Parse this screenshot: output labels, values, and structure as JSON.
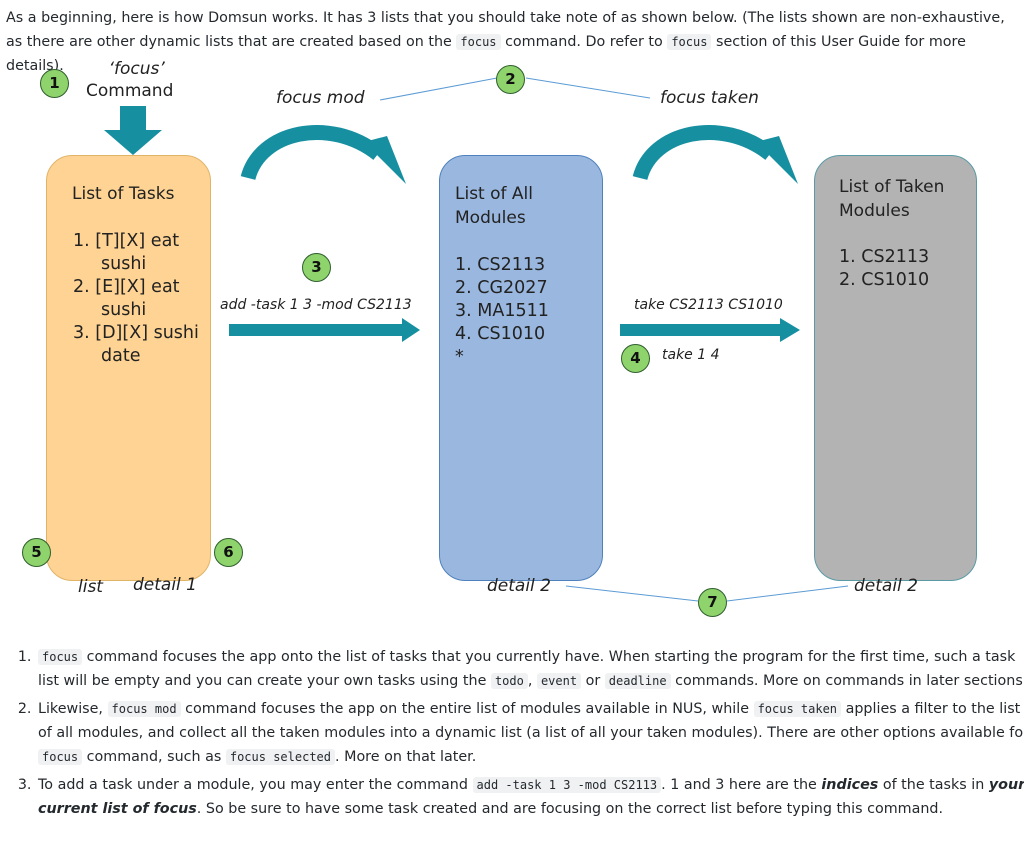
{
  "intro": {
    "part1": "As a beginning, here is how Domsun works. It has 3 lists that you should take note of as shown below. (The lists shown are non-exhaustive, as there are other dynamic lists that are created based on the",
    "code1": "focus",
    "part2": "command. Do refer to",
    "code2": "focus",
    "part3": "section of this User Guide for more details)."
  },
  "diagram": {
    "focus_command": {
      "line1": "‘focus’",
      "line2": "Command"
    },
    "tasks_box": {
      "title": "List of Tasks",
      "items": [
        "1.  [T][X] eat sushi",
        "2.  [E][X] eat sushi",
        "3.  [D][X] sushi date"
      ]
    },
    "modules_box": {
      "title": "List of All Modules",
      "items": [
        "1. CS2113",
        "2. CG2027",
        "3. MA1511",
        "4. CS1010",
        "*"
      ]
    },
    "taken_box": {
      "title": "List of Taken Modules",
      "items": [
        "1. CS2113",
        "2. CS1010"
      ]
    },
    "labels": {
      "focus_mod": "focus mod",
      "focus_taken": "focus taken",
      "add_task": "add -task 1 3 -mod CS2113",
      "take_cs": "take CS2113 CS1010",
      "take_index": "take 1 4",
      "list": "list",
      "detail_1": "detail 1",
      "detail_2_modules": "detail 2",
      "detail_2_taken": "detail 2"
    },
    "badges": {
      "b1": "1",
      "b2": "2",
      "b3": "3",
      "b4": "4",
      "b5": "5",
      "b6": "6",
      "b7": "7"
    },
    "colors": {
      "tasks": "#ffd393",
      "modules": "#9ab8df",
      "taken": "#b3b3b3",
      "arrow": "#168fa0",
      "badge": "#8fd36c"
    }
  },
  "items": {
    "i1": {
      "c1": "focus",
      "t1": "command focuses the app onto the list of tasks that you currently have. When starting the program for the first time, such a task list will be empty and you can create your own tasks using the",
      "c2": "todo",
      "t2": ",",
      "c3": "event",
      "t3": "or",
      "c4": "deadline",
      "t4": "commands. More on commands in later sections."
    },
    "i2": {
      "t1": "Likewise,",
      "c1": "focus mod",
      "t2": "command focuses the app on the entire list of modules available in NUS, while",
      "c2": "focus taken",
      "t3": "applies a filter to the list of all modules, and collect all the taken modules into a dynamic list (a list of all your taken modules). There are other options available for",
      "c3": "focus",
      "t4": "command, such as",
      "c4": "focus selected",
      "t5": ". More on that later."
    },
    "i3": {
      "t1": "To add a task under a module, you may enter the command",
      "c1": "add -task 1 3 -mod CS2113",
      "t2": ". 1 and 3 here are the",
      "b1": "indices",
      "t3": "of the tasks in",
      "b2": "your current list of focus",
      "t4": ". So be sure to have some task created and are focusing on the correct list before typing this command."
    }
  }
}
